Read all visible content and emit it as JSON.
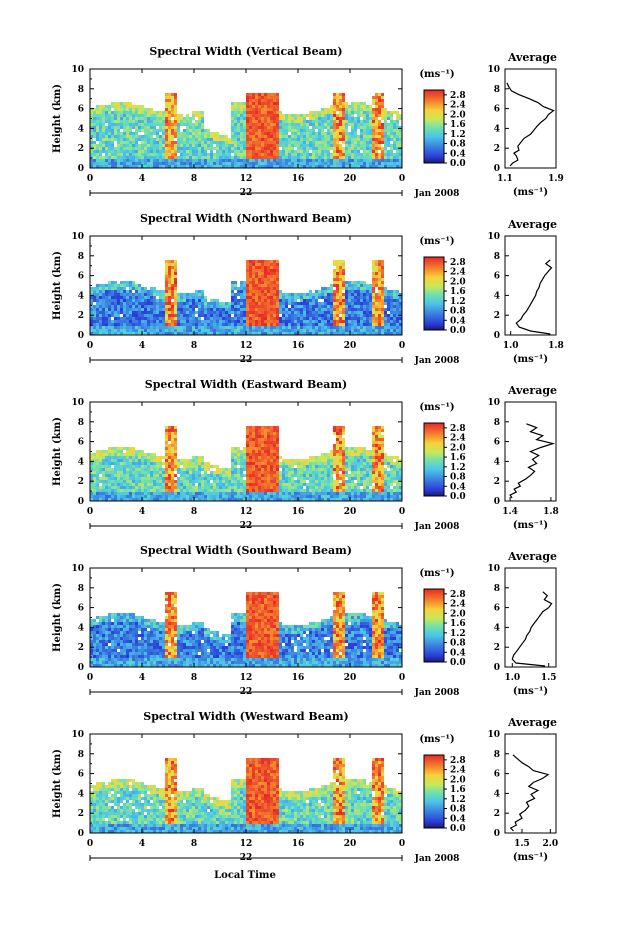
{
  "chart_data": [
    {
      "type": "heatmap",
      "title": "Spectral Width (Vertical Beam)",
      "ylabel": "Height (km)",
      "xlim": [
        0,
        24
      ],
      "ylim": [
        0,
        10
      ],
      "xticks": [
        "0",
        "4",
        "8",
        "12",
        "16",
        "20",
        "0"
      ],
      "yticks": [
        "0",
        "2",
        "4",
        "6",
        "8",
        "10"
      ],
      "date_day": "22",
      "date_month": "Jan 2008",
      "colorbar": {
        "unit": "(ms⁻¹)",
        "ticks": [
          "0.0",
          "0.4",
          "0.8",
          "1.2",
          "1.6",
          "2.0",
          "2.4",
          "2.8"
        ],
        "min": 0,
        "max": 3.0
      },
      "profile": {
        "title": "Average",
        "xlabel": "(ms⁻¹)",
        "xlim": [
          1.1,
          1.9
        ],
        "xticks": [
          "1.1",
          "1.9"
        ],
        "yticks": [
          "0",
          "2",
          "4",
          "6",
          "8",
          "10"
        ],
        "points": [
          [
            1.18,
            0.2
          ],
          [
            1.22,
            0.5
          ],
          [
            1.3,
            0.8
          ],
          [
            1.28,
            1.2
          ],
          [
            1.24,
            1.5
          ],
          [
            1.32,
            1.8
          ],
          [
            1.3,
            2.2
          ],
          [
            1.35,
            2.6
          ],
          [
            1.4,
            3.0
          ],
          [
            1.5,
            3.4
          ],
          [
            1.55,
            3.8
          ],
          [
            1.6,
            4.2
          ],
          [
            1.66,
            4.6
          ],
          [
            1.74,
            5.0
          ],
          [
            1.78,
            5.4
          ],
          [
            1.86,
            5.8
          ],
          [
            1.7,
            6.2
          ],
          [
            1.62,
            6.6
          ],
          [
            1.48,
            7.0
          ],
          [
            1.32,
            7.4
          ],
          [
            1.2,
            7.8
          ],
          [
            1.16,
            8.2
          ],
          [
            1.13,
            8.6
          ]
        ]
      }
    },
    {
      "type": "heatmap",
      "title": "Spectral Width (Northward Beam)",
      "ylabel": "Height (km)",
      "xlim": [
        0,
        24
      ],
      "ylim": [
        0,
        10
      ],
      "xticks": [
        "0",
        "4",
        "8",
        "12",
        "16",
        "20",
        "0"
      ],
      "yticks": [
        "0",
        "2",
        "4",
        "6",
        "8",
        "10"
      ],
      "date_day": "22",
      "date_month": "Jan 2008",
      "colorbar": {
        "unit": "(ms⁻¹)",
        "ticks": [
          "0.0",
          "0.4",
          "0.8",
          "1.2",
          "1.6",
          "2.0",
          "2.4",
          "2.8"
        ],
        "min": 0,
        "max": 3.0
      },
      "profile": {
        "title": "Average",
        "xlabel": "(ms⁻¹)",
        "xlim": [
          0.9,
          1.8
        ],
        "xticks": [
          "1.0",
          "1.8"
        ],
        "yticks": [
          "0",
          "2",
          "4",
          "6",
          "8",
          "10"
        ],
        "points": [
          [
            1.7,
            0.1
          ],
          [
            1.35,
            0.4
          ],
          [
            1.15,
            0.8
          ],
          [
            1.1,
            1.2
          ],
          [
            1.18,
            1.6
          ],
          [
            1.22,
            2.0
          ],
          [
            1.28,
            2.4
          ],
          [
            1.32,
            2.8
          ],
          [
            1.36,
            3.2
          ],
          [
            1.4,
            3.6
          ],
          [
            1.44,
            4.0
          ],
          [
            1.46,
            4.4
          ],
          [
            1.5,
            4.8
          ],
          [
            1.52,
            5.2
          ],
          [
            1.56,
            5.6
          ],
          [
            1.6,
            6.0
          ],
          [
            1.66,
            6.4
          ],
          [
            1.72,
            6.8
          ],
          [
            1.62,
            7.2
          ],
          [
            1.7,
            7.6
          ]
        ]
      }
    },
    {
      "type": "heatmap",
      "title": "Spectral Width (Eastward Beam)",
      "ylabel": "Height (km)",
      "xlim": [
        0,
        24
      ],
      "ylim": [
        0,
        10
      ],
      "xticks": [
        "0",
        "4",
        "8",
        "12",
        "16",
        "20",
        "0"
      ],
      "yticks": [
        "0",
        "2",
        "4",
        "6",
        "8",
        "10"
      ],
      "date_day": "22",
      "date_month": "Jan 2008",
      "colorbar": {
        "unit": "(ms⁻¹)",
        "ticks": [
          "0.0",
          "0.4",
          "0.8",
          "1.2",
          "1.6",
          "2.0",
          "2.4",
          "2.8"
        ],
        "min": 0,
        "max": 3.0
      },
      "profile": {
        "title": "Average",
        "xlabel": "(ms⁻¹)",
        "xlim": [
          1.35,
          1.85
        ],
        "xticks": [
          "1.4",
          "1.8"
        ],
        "yticks": [
          "0",
          "2",
          "4",
          "6",
          "8",
          "10"
        ],
        "points": [
          [
            1.42,
            0.3
          ],
          [
            1.4,
            0.6
          ],
          [
            1.46,
            0.9
          ],
          [
            1.44,
            1.2
          ],
          [
            1.5,
            1.5
          ],
          [
            1.48,
            1.8
          ],
          [
            1.55,
            2.2
          ],
          [
            1.6,
            2.6
          ],
          [
            1.64,
            3.0
          ],
          [
            1.58,
            3.4
          ],
          [
            1.66,
            3.8
          ],
          [
            1.62,
            4.2
          ],
          [
            1.68,
            4.6
          ],
          [
            1.6,
            5.0
          ],
          [
            1.7,
            5.4
          ],
          [
            1.82,
            5.8
          ],
          [
            1.66,
            6.2
          ],
          [
            1.72,
            6.6
          ],
          [
            1.6,
            7.0
          ],
          [
            1.66,
            7.4
          ],
          [
            1.56,
            7.8
          ]
        ]
      }
    },
    {
      "type": "heatmap",
      "title": "Spectral Width (Southward Beam)",
      "ylabel": "Height (km)",
      "xlim": [
        0,
        24
      ],
      "ylim": [
        0,
        10
      ],
      "xticks": [
        "0",
        "4",
        "8",
        "12",
        "16",
        "20",
        "0"
      ],
      "yticks": [
        "0",
        "2",
        "4",
        "6",
        "8",
        "10"
      ],
      "date_day": "22",
      "date_month": "Jan 2008",
      "colorbar": {
        "unit": "(ms⁻¹)",
        "ticks": [
          "0.0",
          "0.4",
          "0.8",
          "1.2",
          "1.6",
          "2.0",
          "2.4",
          "2.8"
        ],
        "min": 0,
        "max": 3.0
      },
      "profile": {
        "title": "Average",
        "xlabel": "(ms⁻¹)",
        "xlim": [
          0.9,
          1.6
        ],
        "xticks": [
          "1.0",
          "1.5"
        ],
        "yticks": [
          "0",
          "2",
          "4",
          "6",
          "8",
          "10"
        ],
        "points": [
          [
            1.45,
            0.1
          ],
          [
            1.05,
            0.4
          ],
          [
            1.0,
            0.8
          ],
          [
            1.02,
            1.2
          ],
          [
            1.06,
            1.6
          ],
          [
            1.1,
            2.0
          ],
          [
            1.14,
            2.4
          ],
          [
            1.18,
            2.8
          ],
          [
            1.2,
            3.2
          ],
          [
            1.24,
            3.6
          ],
          [
            1.26,
            4.0
          ],
          [
            1.3,
            4.4
          ],
          [
            1.34,
            4.8
          ],
          [
            1.38,
            5.2
          ],
          [
            1.42,
            5.6
          ],
          [
            1.5,
            6.0
          ],
          [
            1.54,
            6.4
          ],
          [
            1.44,
            6.8
          ],
          [
            1.48,
            7.2
          ],
          [
            1.42,
            7.6
          ]
        ]
      }
    },
    {
      "type": "heatmap",
      "title": "Spectral Width (Westward Beam)",
      "ylabel": "Height (km)",
      "xlabel": "Local Time",
      "xlim": [
        0,
        24
      ],
      "ylim": [
        0,
        10
      ],
      "xticks": [
        "0",
        "4",
        "8",
        "12",
        "16",
        "20",
        "0"
      ],
      "yticks": [
        "0",
        "2",
        "4",
        "6",
        "8",
        "10"
      ],
      "date_day": "22",
      "date_month": "Jan 2008",
      "colorbar": {
        "unit": "(ms⁻¹)",
        "ticks": [
          "0.0",
          "0.4",
          "0.8",
          "1.2",
          "1.6",
          "2.0",
          "2.4",
          "2.8"
        ],
        "min": 0,
        "max": 3.0
      },
      "profile": {
        "title": "Average",
        "xlabel": "(ms⁻¹)",
        "xlim": [
          1.2,
          2.1
        ],
        "xticks": [
          "1.5",
          "2.0"
        ],
        "yticks": [
          "0",
          "2",
          "4",
          "6",
          "8",
          "10"
        ],
        "points": [
          [
            1.35,
            0.2
          ],
          [
            1.3,
            0.5
          ],
          [
            1.4,
            0.8
          ],
          [
            1.38,
            1.1
          ],
          [
            1.5,
            1.5
          ],
          [
            1.46,
            1.9
          ],
          [
            1.56,
            2.3
          ],
          [
            1.62,
            2.7
          ],
          [
            1.58,
            3.1
          ],
          [
            1.72,
            3.5
          ],
          [
            1.66,
            3.9
          ],
          [
            1.78,
            4.3
          ],
          [
            1.62,
            4.7
          ],
          [
            1.7,
            5.1
          ],
          [
            1.86,
            5.5
          ],
          [
            1.96,
            5.9
          ],
          [
            1.7,
            6.3
          ],
          [
            1.62,
            6.7
          ],
          [
            1.5,
            7.1
          ],
          [
            1.42,
            7.5
          ],
          [
            1.34,
            7.9
          ]
        ]
      }
    }
  ]
}
